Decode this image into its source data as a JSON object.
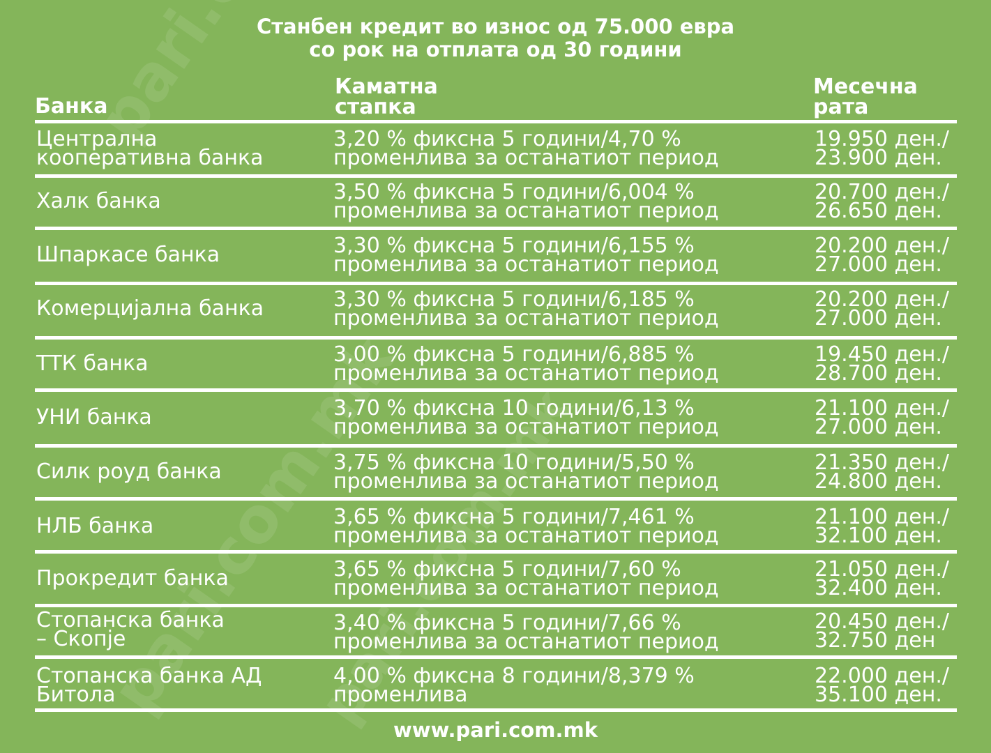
{
  "title_line1": "Станбен кредит во износ од 75.000 евра",
  "title_line2": "со рок на отплата од 30 години",
  "headers": {
    "bank": "Банка",
    "rate_line1": "Каматна",
    "rate_line2": "стапка",
    "monthly_line1": "Месечна",
    "monthly_line2": "рата"
  },
  "rows": [
    {
      "bank1": "Централна",
      "bank2": "кооперативна банка",
      "rate1": "3,20 % фиксна 5 години/4,70 %",
      "rate2": "променлива за останатиот период",
      "m1": "19.950 ден./",
      "m2": "23.900 ден."
    },
    {
      "bank1": "Халк банка",
      "bank2": "",
      "rate1": "3,50 % фиксна 5 години/6,004 %",
      "rate2": "променлива за останатиот период",
      "m1": "20.700 ден./",
      "m2": "26.650 ден."
    },
    {
      "bank1": "Шпаркасе банка",
      "bank2": "",
      "rate1": "3,30 % фиксна 5 години/6,155 %",
      "rate2": "променлива за останатиот период",
      "m1": "20.200 ден./",
      "m2": "27.000 ден."
    },
    {
      "bank1": "Комерцијална банка",
      "bank2": "",
      "rate1": "3,30 % фиксна 5 години/6,185 %",
      "rate2": "променлива за останатиот период",
      "m1": "20.200 ден./",
      "m2": "27.000 ден."
    },
    {
      "bank1": "ТТК банка",
      "bank2": "",
      "rate1": "3,00 % фиксна 5 години/6,885 %",
      "rate2": "променлива за останатиот период",
      "m1": "19.450 ден./",
      "m2": "28.700 ден."
    },
    {
      "bank1": "УНИ банка",
      "bank2": "",
      "rate1": "3,70 % фиксна 10 години/6,13 %",
      "rate2": "променлива за останатиот период",
      "m1": "21.100 ден./",
      "m2": "27.000 ден."
    },
    {
      "bank1": "Силк роуд банка",
      "bank2": "",
      "rate1": "3,75 % фиксна 10 години/5,50 %",
      "rate2": "променлива за останатиот период",
      "m1": "21.350 ден./",
      "m2": "24.800 ден."
    },
    {
      "bank1": "НЛБ банка",
      "bank2": "",
      "rate1": "3,65 % фиксна 5 години/7,461 %",
      "rate2": "променлива за останатиот период",
      "m1": "21.100 ден./",
      "m2": "32.100 ден."
    },
    {
      "bank1": "Прокредит банка",
      "bank2": "",
      "rate1": "3,65 % фиксна 5 години/7,60 %",
      "rate2": "променлива за останатиот период",
      "m1": "21.050 ден./",
      "m2": "32.400 ден."
    },
    {
      "bank1": "Стопанска банка",
      "bank2": "– Скопје",
      "rate1": "3,40 % фиксна 5 години/7,66 %",
      "rate2": "променлива за останатиот период",
      "m1": "20.450 ден./",
      "m2": "32.750 ден"
    },
    {
      "bank1": "Стопанска банка АД",
      "bank2": "Битола",
      "rate1": "4,00 % фиксна 8 години/8,379 %",
      "rate2": "променлива",
      "m1": "22.000 ден./",
      "m2": "35.100 ден."
    }
  ],
  "footer": "www.pari.com.mk",
  "watermark": "pari.com.mk"
}
